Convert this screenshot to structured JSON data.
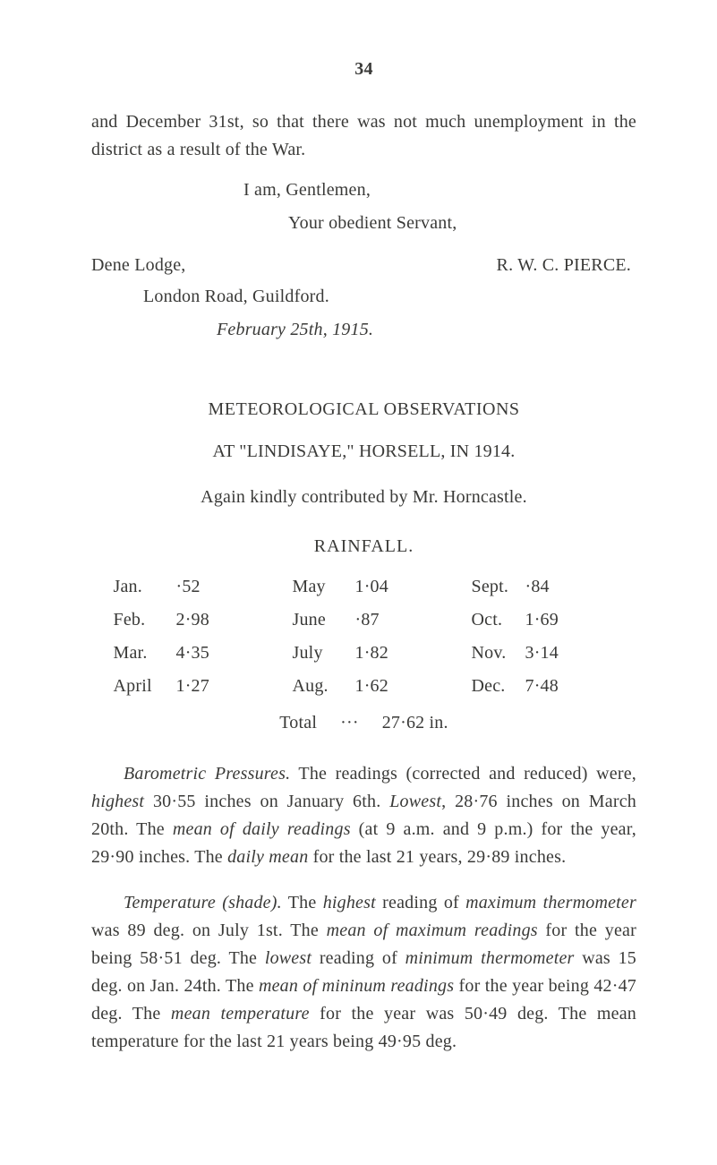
{
  "page_number": "34",
  "opening_paragraph": "and December 31st, so that there was not much unemploy­ment in the district as a result of the War.",
  "closing": {
    "line1": "I am, Gentlemen,",
    "line2": "Your obedient Servant,",
    "signature": "R. W. C. PIERCE.",
    "lodge": "Dene Lodge,",
    "address": "London Road, Guildford.",
    "date": "February 25th, 1915."
  },
  "meteo": {
    "title": "METEOROLOGICAL OBSERVATIONS",
    "subtitle": "AT \"LINDISAYE,\" HORSELL, IN 1914.",
    "note": "Again kindly contributed by Mr. Horncastle.",
    "rain_title": "RAINFALL.",
    "rows": [
      {
        "m1": "Jan.",
        "v1": "·52",
        "m2": "May",
        "v2": "1·04",
        "m3": "Sept.",
        "v3": "·84"
      },
      {
        "m1": "Feb.",
        "v1": "2·98",
        "m2": "June",
        "v2": "·87",
        "m3": "Oct.",
        "v3": "1·69"
      },
      {
        "m1": "Mar.",
        "v1": "4·35",
        "m2": "July",
        "v2": "1·82",
        "m3": "Nov.",
        "v3": "3·14"
      },
      {
        "m1": "April",
        "v1": "1·27",
        "m2": "Aug.",
        "v2": "1·62",
        "m3": "Dec.",
        "v3": "7·48"
      }
    ],
    "total_label": "Total",
    "total_dots": "···",
    "total_value": "27·62 in."
  },
  "barometric": {
    "lead_italic": "Barometric Pressures.",
    "text_a": "  The readings (corrected and re­duced) were, ",
    "highest_i": "highest",
    "text_b": " 30·55 inches on January 6th.  ",
    "lowest_i": "Lowest",
    "text_c": ", 28·76 inches on March 20th.  The ",
    "mean_i": "mean of daily readings",
    "text_d": " (at 9 a.m. and 9 p.m.) for the year, 29·90 inches.  The ",
    "daily_mean_i": "daily mean",
    "text_e": " for the last 21 years, 29·89 inches."
  },
  "temperature": {
    "lead_italic": "Temperature (shade).",
    "text_a": "  The ",
    "highest_i": "highest",
    "text_b": " reading of ",
    "max_therm_i": "maximum thermometer",
    "text_c": " was 89 deg. on July 1st.  The ",
    "mean_max_i": "mean of maxi­mum readings",
    "text_d": " for the year being 58·51 deg.  The ",
    "lowest_i": "lowest",
    "text_e": " reading of ",
    "min_therm_i": "minimum thermometer",
    "text_f": " was 15 deg. on Jan. 24th. The ",
    "mean_min_i": "mean of mininum readings",
    "text_g": " for the year being 42·47 deg. The ",
    "mean_temp_i": "mean temperature",
    "text_h": " for the year was 50·49 deg.  The mean temperature for the last 21 years being 49·95 deg."
  }
}
